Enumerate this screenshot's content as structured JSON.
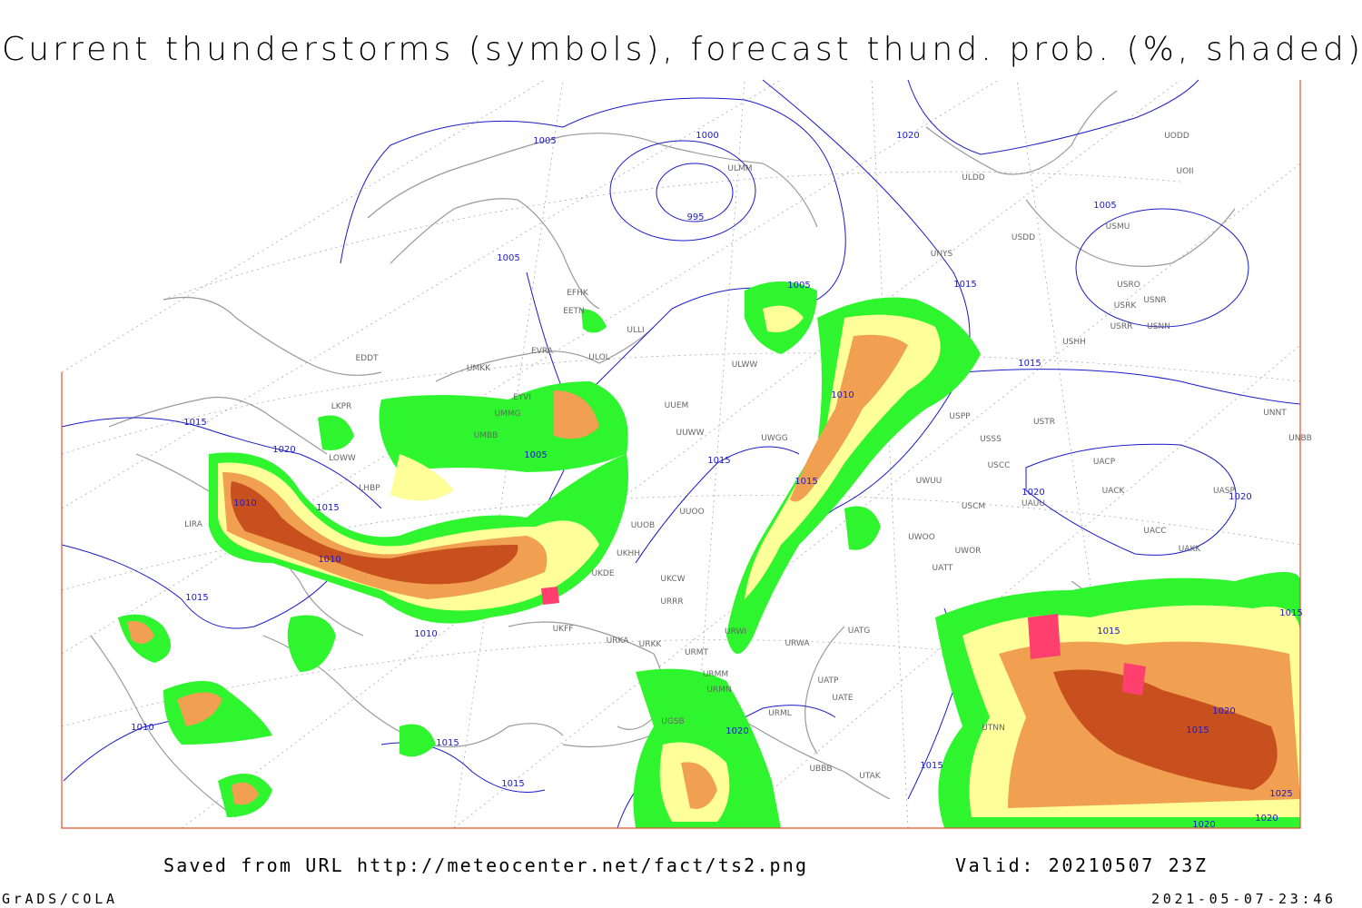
{
  "header": {
    "title": "Current thunderstorms (symbols), forecast thund. prob. (%, shaded)"
  },
  "isobar_labels": [
    1005,
    1000,
    995,
    1020,
    1005,
    1005,
    1015,
    1005,
    1015,
    1010,
    1015,
    1020,
    1005,
    1015,
    1015,
    1020,
    1020,
    1010,
    1015,
    1010,
    1015,
    1010,
    1015,
    1015,
    1010,
    1020,
    1015,
    1015,
    1015,
    1015,
    1020,
    1025,
    1020,
    1020
  ],
  "stations": [
    "ULMM",
    "ULDD",
    "UODD",
    "UOII",
    "USDD",
    "USMU",
    "UNYS",
    "USRO",
    "USRK",
    "USNR",
    "USNN",
    "USRR",
    "USHH",
    "EFHK",
    "EETN",
    "ULLI",
    "EVRA",
    "ULOL",
    "UMKK",
    "EDDT",
    "UMMG",
    "EYVI",
    "UMBB",
    "UUEM",
    "UUWW",
    "UWGG",
    "ULWW",
    "USPP",
    "USTR",
    "USSS",
    "USCC",
    "UACP",
    "UACK",
    "UASP",
    "UNNT",
    "UNBB",
    "UAUU",
    "UACC",
    "UAKK",
    "USCM",
    "UWOO",
    "UWOR",
    "UATT",
    "UWUU",
    "UUOB",
    "UUOO",
    "UKHH",
    "UKDE",
    "UKCW",
    "URRR",
    "UKFF",
    "URKA",
    "URKK",
    "URMT",
    "URWI",
    "URWA",
    "UATG",
    "UATP",
    "UATE",
    "URMM",
    "URMN",
    "URML",
    "UGSB",
    "UBBB",
    "UTAK",
    "UTNN",
    "LIRA",
    "LKPR",
    "LOWW",
    "LHBP"
  ],
  "footer": {
    "source": "Saved from URL http://meteocenter.net/fact/ts2.png",
    "valid": "Valid: 20210507 23Z",
    "software": "GrADS/COLA",
    "timestamp": "2021-05-07-23:46"
  }
}
